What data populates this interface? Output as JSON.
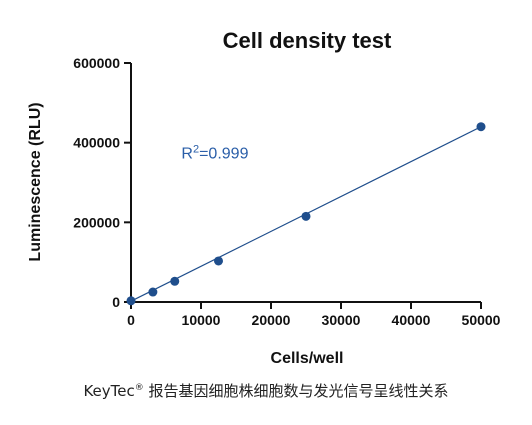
{
  "caption": {
    "brand": "KeyTec",
    "mark": "®",
    "text": " 报告基因细胞株细胞数与发光信号呈线性关系"
  },
  "chart_data": {
    "type": "scatter",
    "title": "Cell density test",
    "xlabel": "Cells/well",
    "ylabel": "Luminescence (RLU)",
    "xlim": [
      0,
      50000
    ],
    "ylim": [
      0,
      600000
    ],
    "xticks": [
      0,
      10000,
      20000,
      30000,
      40000,
      50000
    ],
    "yticks": [
      0,
      200000,
      400000,
      600000
    ],
    "x_tick_labels": [
      "0",
      "10000",
      "20000",
      "30000",
      "40000",
      "50000"
    ],
    "y_tick_labels": [
      "0",
      "200000",
      "400000",
      "600000"
    ],
    "grid": false,
    "legend": "none",
    "series": [
      {
        "x": [
          0,
          3125,
          6250,
          12500,
          25000,
          50000
        ],
        "y": [
          3000,
          25000,
          52000,
          103000,
          215000,
          440000
        ],
        "color": "#1f4e8c",
        "fit": "linear",
        "fit_line": [
          [
            0,
            2000
          ],
          [
            50000,
            440000
          ]
        ]
      }
    ],
    "annotation": {
      "prefix": "R",
      "superscript": "2",
      "text": "=0.999",
      "x": 7200,
      "y": 360000,
      "color": "#2a5ea8"
    }
  }
}
